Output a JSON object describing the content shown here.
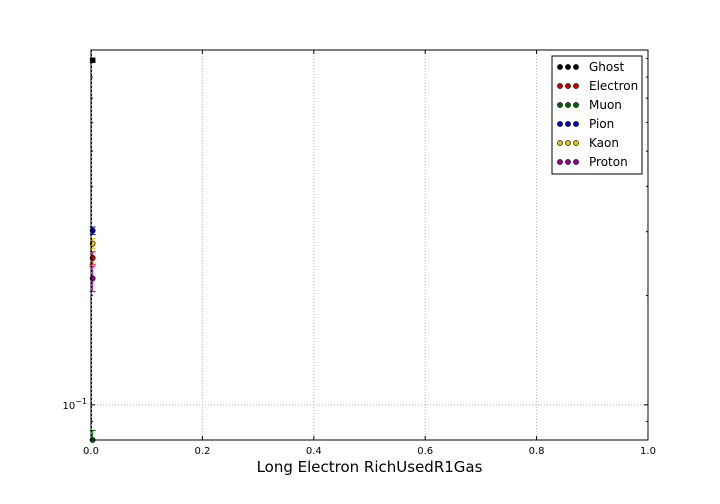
{
  "chart_data": {
    "type": "scatter",
    "title": "",
    "xlabel": "Long Electron RichUsedR1Gas",
    "ylabel": "",
    "xlim": [
      0,
      1
    ],
    "ylog": true,
    "ylim": [
      0.08,
      0.95
    ],
    "grid": true,
    "legend_position": "top-right",
    "x_ticks": [
      {
        "value": 0.0,
        "label": "0.0"
      },
      {
        "value": 0.2,
        "label": "0.2"
      },
      {
        "value": 0.4,
        "label": "0.4"
      },
      {
        "value": 0.6,
        "label": "0.6"
      },
      {
        "value": 0.8,
        "label": "0.8"
      },
      {
        "value": 1.0,
        "label": "1.0"
      }
    ],
    "y_ticks": [
      {
        "value": 0.1,
        "base": "10",
        "exp": "−1"
      }
    ],
    "series": [
      {
        "name": "Ghost",
        "color": "#000000",
        "points": [
          {
            "x": 0.003,
            "y": 0.89,
            "err": 0.012
          }
        ]
      },
      {
        "name": "Electron",
        "color": "#cc0000",
        "points": [
          {
            "x": 0.003,
            "y": 0.254,
            "err": 0.01
          }
        ]
      },
      {
        "name": "Muon",
        "color": "#006400",
        "points": [
          {
            "x": 0.003,
            "y": 0.08,
            "err": 0.005
          }
        ]
      },
      {
        "name": "Pion",
        "color": "#0000cc",
        "points": [
          {
            "x": 0.003,
            "y": 0.302,
            "err": 0.007
          }
        ]
      },
      {
        "name": "Kaon",
        "color": "#e6c200",
        "points": [
          {
            "x": 0.003,
            "y": 0.278,
            "err": 0.009
          }
        ]
      },
      {
        "name": "Proton",
        "color": "#990099",
        "points": [
          {
            "x": 0.003,
            "y": 0.223,
            "err": 0.018
          }
        ]
      }
    ]
  }
}
